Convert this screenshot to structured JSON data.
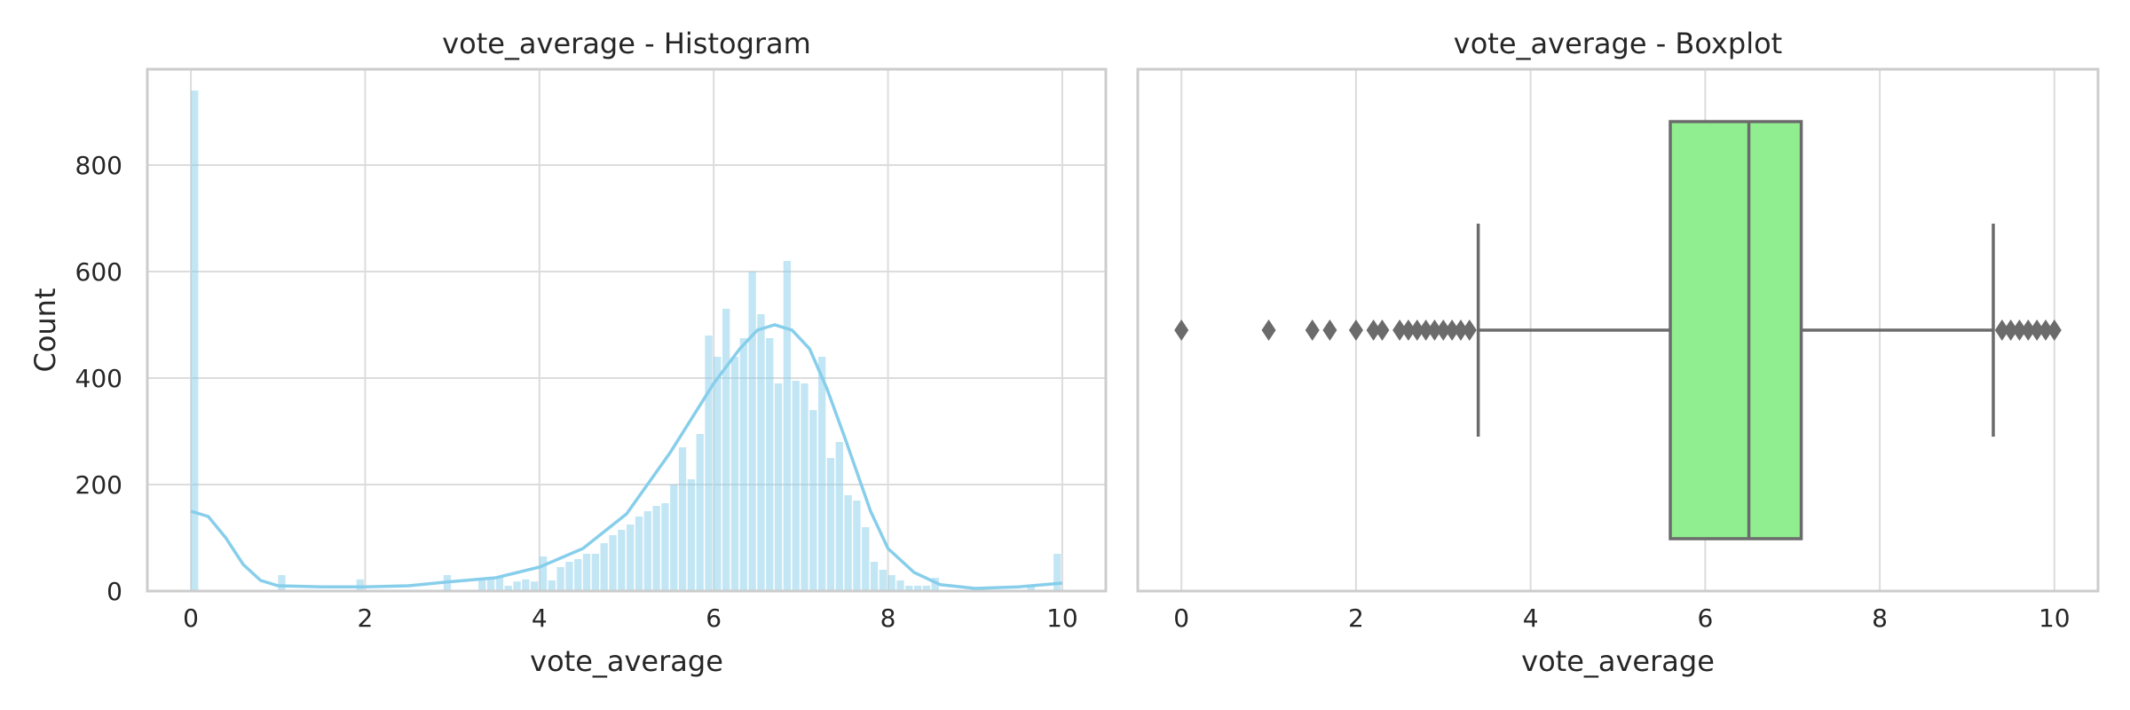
{
  "chart_data": [
    {
      "type": "histogram",
      "title": "vote_average - Histogram",
      "xlabel": "vote_average",
      "ylabel": "Count",
      "xlim": [
        -0.5,
        10.5
      ],
      "ylim": [
        0,
        980
      ],
      "xticks": [
        "0",
        "2",
        "4",
        "6",
        "8",
        "10"
      ],
      "yticks": [
        "0",
        "200",
        "400",
        "600",
        "800"
      ],
      "grid": true,
      "bar_color": "#87ceeb",
      "kde_color": "#87ceeb",
      "bin_width": 0.1,
      "bins": [
        [
          0.0,
          940
        ],
        [
          1.0,
          30
        ],
        [
          1.9,
          22
        ],
        [
          2.9,
          30
        ],
        [
          3.3,
          20
        ],
        [
          3.4,
          25
        ],
        [
          3.5,
          28
        ],
        [
          3.6,
          10
        ],
        [
          3.7,
          18
        ],
        [
          3.8,
          22
        ],
        [
          3.9,
          18
        ],
        [
          4.0,
          65
        ],
        [
          4.1,
          20
        ],
        [
          4.2,
          45
        ],
        [
          4.3,
          55
        ],
        [
          4.4,
          60
        ],
        [
          4.5,
          70
        ],
        [
          4.6,
          70
        ],
        [
          4.7,
          90
        ],
        [
          4.8,
          105
        ],
        [
          4.9,
          115
        ],
        [
          5.0,
          125
        ],
        [
          5.1,
          140
        ],
        [
          5.2,
          150
        ],
        [
          5.3,
          160
        ],
        [
          5.4,
          165
        ],
        [
          5.5,
          200
        ],
        [
          5.6,
          270
        ],
        [
          5.7,
          210
        ],
        [
          5.8,
          295
        ],
        [
          5.9,
          480
        ],
        [
          6.0,
          440
        ],
        [
          6.1,
          530
        ],
        [
          6.2,
          440
        ],
        [
          6.3,
          475
        ],
        [
          6.4,
          600
        ],
        [
          6.5,
          520
        ],
        [
          6.6,
          475
        ],
        [
          6.7,
          390
        ],
        [
          6.8,
          620
        ],
        [
          6.9,
          395
        ],
        [
          7.0,
          390
        ],
        [
          7.1,
          340
        ],
        [
          7.2,
          440
        ],
        [
          7.3,
          250
        ],
        [
          7.4,
          280
        ],
        [
          7.5,
          180
        ],
        [
          7.6,
          170
        ],
        [
          7.7,
          120
        ],
        [
          7.8,
          55
        ],
        [
          7.9,
          40
        ],
        [
          8.0,
          30
        ],
        [
          8.1,
          20
        ],
        [
          8.2,
          10
        ],
        [
          8.3,
          10
        ],
        [
          8.4,
          10
        ],
        [
          8.5,
          25
        ],
        [
          9.6,
          10
        ],
        [
          9.9,
          70
        ]
      ],
      "kde": {
        "x": [
          0.0,
          0.2,
          0.4,
          0.6,
          0.8,
          1.0,
          1.5,
          2.0,
          2.5,
          3.0,
          3.5,
          4.0,
          4.5,
          5.0,
          5.5,
          6.0,
          6.3,
          6.5,
          6.7,
          6.9,
          7.1,
          7.3,
          7.5,
          7.8,
          8.0,
          8.3,
          8.6,
          9.0,
          9.5,
          10.0
        ],
        "y": [
          150,
          140,
          100,
          50,
          20,
          10,
          8,
          8,
          10,
          18,
          25,
          45,
          80,
          145,
          260,
          390,
          455,
          490,
          500,
          490,
          455,
          380,
          290,
          150,
          80,
          35,
          12,
          5,
          8,
          15
        ]
      }
    },
    {
      "type": "boxplot",
      "title": "vote_average - Boxplot",
      "xlabel": "vote_average",
      "xlim": [
        -0.5,
        10.5
      ],
      "xticks": [
        "0",
        "2",
        "4",
        "6",
        "8",
        "10"
      ],
      "grid": true,
      "box_color": "#90ee90",
      "line_color": "#6b6b6b",
      "q1": 5.6,
      "median": 6.5,
      "q3": 7.1,
      "whisker_low": 3.4,
      "whisker_high": 9.3,
      "outliers": [
        0.0,
        1.0,
        1.5,
        1.7,
        2.0,
        2.2,
        2.3,
        2.5,
        2.6,
        2.7,
        2.8,
        2.9,
        3.0,
        3.1,
        3.2,
        3.3,
        9.4,
        9.5,
        9.6,
        9.7,
        9.8,
        9.9,
        10.0
      ]
    }
  ]
}
